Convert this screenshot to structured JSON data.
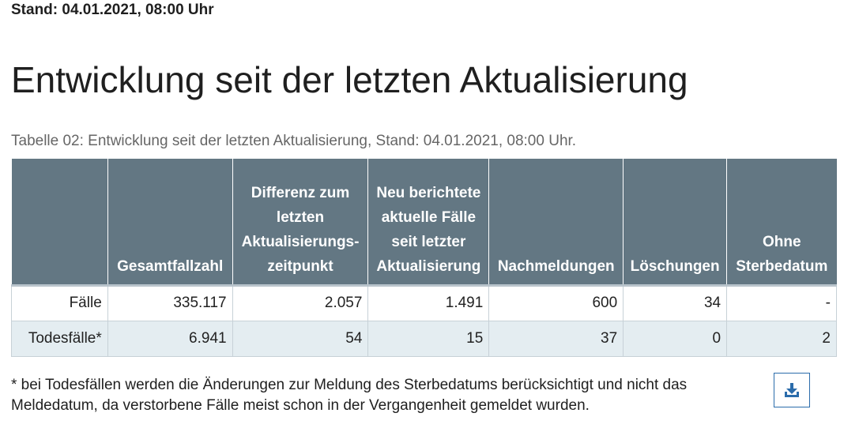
{
  "stand": "Stand: 04.01.2021, 08:00 Uhr",
  "title": "Entwicklung seit der letzten Aktualisierung",
  "caption": "Tabelle 02: Entwicklung seit der letzten Aktualisierung, Stand: 04.01.2021, 08:00 Uhr.",
  "table": {
    "headers": [
      "",
      "Gesamtfallzahl",
      "Differenz zum letzten Aktualisierungs-zeitpunkt",
      "Neu berichtete aktuelle Fälle seit letzter Aktualisierung",
      "Nachmeldungen",
      "Löschungen",
      "Ohne Sterbedatum"
    ],
    "rows": [
      [
        "Fälle",
        "335.117",
        "2.057",
        "1.491",
        "600",
        "34",
        "-"
      ],
      [
        "Todesfälle*",
        "6.941",
        "54",
        "15",
        "37",
        "0",
        "2"
      ]
    ]
  },
  "footnote": "* bei Todesfällen werden die Änderungen zur Meldung des Sterbedatums berücksichtigt und nicht das Meldedatum, da verstorbene Fälle meist schon in der Vergangenheit gemeldet wurden.",
  "download": {
    "icon": "download-icon",
    "color": "#2b6cab"
  },
  "colors": {
    "header_bg": "#637783",
    "row_alt_bg": "#e4edf1",
    "border": "#c7d1d7"
  }
}
